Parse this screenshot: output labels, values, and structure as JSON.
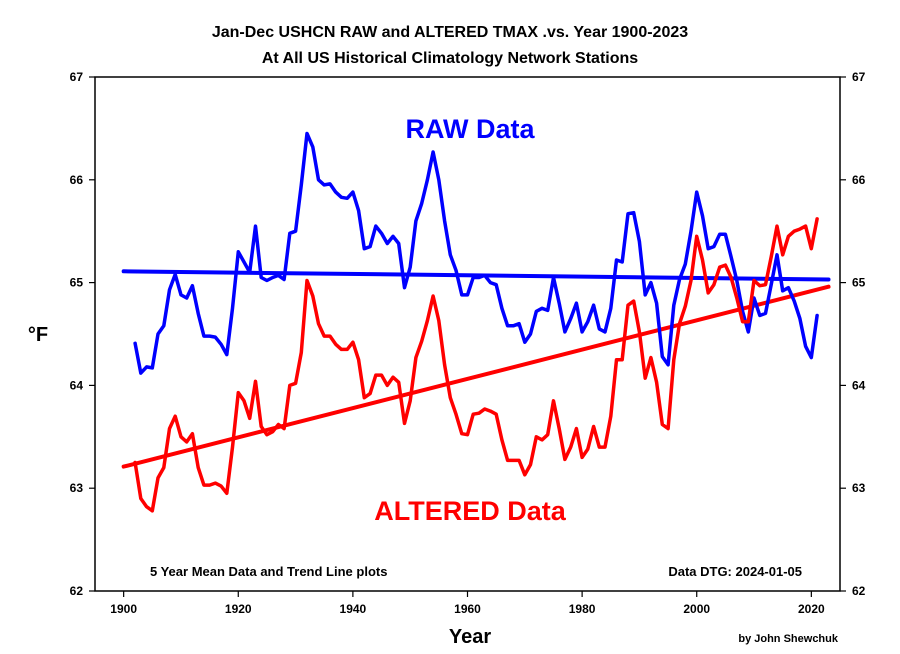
{
  "chart_data": {
    "type": "line",
    "title": "Jan-Dec USHCN RAW and ALTERED TMAX .vs. Year 1900-2023",
    "subtitle": "At All US Historical Climatology Network Stations",
    "xlabel": "Year",
    "ylabel": "°F",
    "xlim": [
      1895,
      2025
    ],
    "ylim": [
      62,
      67
    ],
    "x_ticks": [
      1900,
      1920,
      1940,
      1960,
      1980,
      2000,
      2020
    ],
    "y_ticks": [
      62,
      63,
      64,
      65,
      66,
      67
    ],
    "grid": false,
    "annotations": {
      "left_note": "5 Year Mean Data and Trend Line plots",
      "right_note": "Data DTG: 2024-01-05",
      "credit": "by John Shewchuk",
      "raw_label": "RAW Data",
      "altered_label": "ALTERED Data"
    },
    "colors": {
      "raw": "#0000ff",
      "altered": "#ff0000"
    },
    "x": [
      1902,
      1903,
      1904,
      1905,
      1906,
      1907,
      1908,
      1909,
      1910,
      1911,
      1912,
      1913,
      1914,
      1915,
      1916,
      1917,
      1918,
      1919,
      1920,
      1921,
      1922,
      1923,
      1924,
      1925,
      1926,
      1927,
      1928,
      1929,
      1930,
      1931,
      1932,
      1933,
      1934,
      1935,
      1936,
      1937,
      1938,
      1939,
      1940,
      1941,
      1942,
      1943,
      1944,
      1945,
      1946,
      1947,
      1948,
      1949,
      1950,
      1951,
      1952,
      1953,
      1954,
      1955,
      1956,
      1957,
      1958,
      1959,
      1960,
      1961,
      1962,
      1963,
      1964,
      1965,
      1966,
      1967,
      1968,
      1969,
      1970,
      1971,
      1972,
      1973,
      1974,
      1975,
      1976,
      1977,
      1978,
      1979,
      1980,
      1981,
      1982,
      1983,
      1984,
      1985,
      1986,
      1987,
      1988,
      1989,
      1990,
      1991,
      1992,
      1993,
      1994,
      1995,
      1996,
      1997,
      1998,
      1999,
      2000,
      2001,
      2002,
      2003,
      2004,
      2005,
      2006,
      2007,
      2008,
      2009,
      2010,
      2011,
      2012,
      2013,
      2014,
      2015,
      2016,
      2017,
      2018,
      2019,
      2020,
      2021
    ],
    "series": [
      {
        "key": "raw",
        "values": [
          64.41,
          64.12,
          64.18,
          64.17,
          64.5,
          64.58,
          64.93,
          65.08,
          64.88,
          64.85,
          64.97,
          64.7,
          64.48,
          64.48,
          64.47,
          64.4,
          64.3,
          64.75,
          65.3,
          65.2,
          65.1,
          65.55,
          65.05,
          65.02,
          65.05,
          65.07,
          65.03,
          65.48,
          65.5,
          65.95,
          66.45,
          66.32,
          66.0,
          65.95,
          65.96,
          65.88,
          65.83,
          65.82,
          65.88,
          65.7,
          65.33,
          65.35,
          65.55,
          65.48,
          65.38,
          65.45,
          65.38,
          64.95,
          65.15,
          65.6,
          65.77,
          66.0,
          66.27,
          66.0,
          65.6,
          65.27,
          65.12,
          64.88,
          64.88,
          65.05,
          65.05,
          65.07,
          65.0,
          64.98,
          64.75,
          64.58,
          64.58,
          64.6,
          64.42,
          64.5,
          64.72,
          64.75,
          64.73,
          65.05,
          64.8,
          64.52,
          64.65,
          64.8,
          64.52,
          64.62,
          64.78,
          64.55,
          64.52,
          64.75,
          65.22,
          65.2,
          65.67,
          65.68,
          65.4,
          64.88,
          65.0,
          64.8,
          64.28,
          64.2,
          64.78,
          65.03,
          65.18,
          65.5,
          65.88,
          65.65,
          65.33,
          65.35,
          65.47,
          65.47,
          65.25,
          65.02,
          64.72,
          64.52,
          64.85,
          64.68,
          64.7,
          64.98,
          65.27,
          64.92,
          64.95,
          64.82,
          64.65,
          64.38,
          64.27,
          64.68
        ]
      },
      {
        "key": "altered",
        "values": [
          63.25,
          62.9,
          62.82,
          62.78,
          63.1,
          63.2,
          63.58,
          63.7,
          63.5,
          63.45,
          63.53,
          63.2,
          63.03,
          63.03,
          63.05,
          63.02,
          62.95,
          63.4,
          63.93,
          63.85,
          63.68,
          64.04,
          63.6,
          63.52,
          63.55,
          63.62,
          63.58,
          64.0,
          64.02,
          64.32,
          65.02,
          64.87,
          64.6,
          64.48,
          64.48,
          64.4,
          64.35,
          64.35,
          64.42,
          64.25,
          63.88,
          63.92,
          64.1,
          64.1,
          64.0,
          64.08,
          64.03,
          63.63,
          63.85,
          64.27,
          64.43,
          64.63,
          64.87,
          64.63,
          64.2,
          63.88,
          63.72,
          63.53,
          63.52,
          63.72,
          63.73,
          63.77,
          63.75,
          63.72,
          63.47,
          63.27,
          63.27,
          63.27,
          63.13,
          63.23,
          63.5,
          63.47,
          63.52,
          63.85,
          63.58,
          63.28,
          63.4,
          63.58,
          63.3,
          63.38,
          63.6,
          63.4,
          63.4,
          63.7,
          64.25,
          64.25,
          64.78,
          64.82,
          64.52,
          64.07,
          64.27,
          64.03,
          63.62,
          63.58,
          64.25,
          64.6,
          64.77,
          65.02,
          65.45,
          65.22,
          64.9,
          64.98,
          65.15,
          65.17,
          65.05,
          64.85,
          64.62,
          64.62,
          65.02,
          64.97,
          64.98,
          65.25,
          65.55,
          65.27,
          65.45,
          65.5,
          65.52,
          65.55,
          65.33,
          65.62
        ]
      }
    ],
    "trend_lines": [
      {
        "key": "raw",
        "x": [
          1900,
          2023
        ],
        "y": [
          65.11,
          65.03
        ]
      },
      {
        "key": "altered",
        "x": [
          1900,
          2023
        ],
        "y": [
          63.21,
          64.96
        ]
      }
    ]
  }
}
